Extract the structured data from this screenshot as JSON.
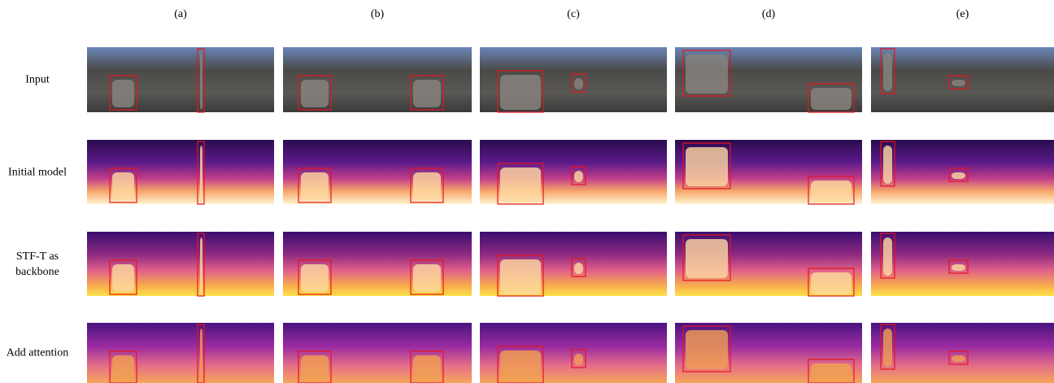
{
  "columns": [
    "(a)",
    "(b)",
    "(c)",
    "(d)",
    "(e)"
  ],
  "rows": [
    "Input",
    "Initial model",
    "STF-T as backbone",
    "Add attention"
  ]
}
